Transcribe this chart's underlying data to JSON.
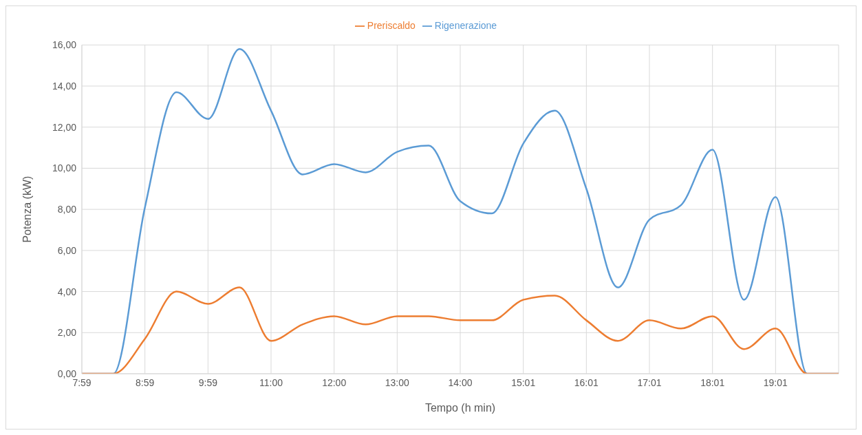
{
  "chart_data": {
    "type": "line",
    "xlabel": "Tempo (h min)",
    "ylabel": "Potenza (kW)",
    "categories": [
      "7:59",
      null,
      "8:59",
      null,
      "9:59",
      null,
      "11:00",
      null,
      "12:00",
      null,
      "13:00",
      null,
      "14:00",
      null,
      "15:01",
      null,
      "16:01",
      null,
      "17:01",
      null,
      "18:01",
      null,
      "19:01",
      null,
      null
    ],
    "series": [
      {
        "name": "Rigenerazione",
        "color": "#5b9bd5",
        "values": [
          0,
          0,
          8.1,
          13.7,
          12.4,
          15.8,
          12.8,
          9.7,
          10.2,
          9.8,
          10.8,
          11.1,
          8.4,
          7.8,
          11.2,
          12.8,
          9.0,
          4.2,
          7.5,
          8.2,
          10.9,
          3.6,
          8.6,
          0,
          0
        ]
      },
      {
        "name": "Preriscaldo",
        "color": "#ed7d31",
        "values": [
          0,
          0,
          1.7,
          4.0,
          3.4,
          4.2,
          1.6,
          2.4,
          2.8,
          2.4,
          2.8,
          2.8,
          2.6,
          2.6,
          3.6,
          3.8,
          2.6,
          1.6,
          2.6,
          2.2,
          2.8,
          1.2,
          2.2,
          0,
          0
        ]
      }
    ],
    "ylim": [
      0,
      16
    ],
    "yticks": [
      {
        "value": 0,
        "label": "0,00"
      },
      {
        "value": 2,
        "label": "2,00"
      },
      {
        "value": 4,
        "label": "4,00"
      },
      {
        "value": 6,
        "label": "6,00"
      },
      {
        "value": 8,
        "label": "8,00"
      },
      {
        "value": 10,
        "label": "10,00"
      },
      {
        "value": 12,
        "label": "12,00"
      },
      {
        "value": 14,
        "label": "14,00"
      },
      {
        "value": 16,
        "label": "16,00"
      }
    ],
    "grid": true,
    "legend": "top",
    "marker": "none",
    "line_style": "solid"
  }
}
